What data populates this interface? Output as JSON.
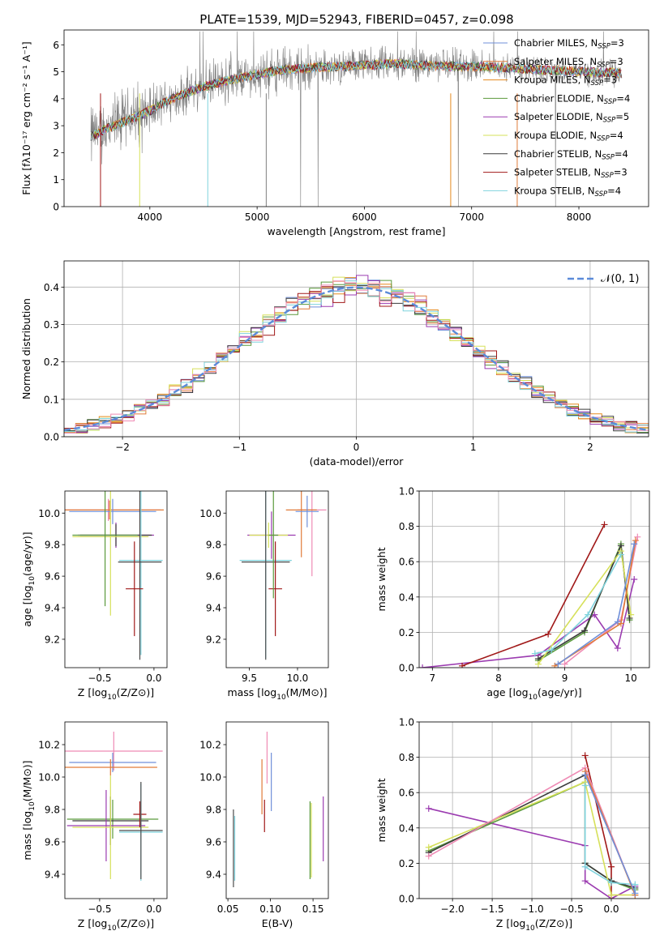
{
  "title": "PLATE=1539, MJD=52943, FIBERID=0457, z=0.098",
  "colors": [
    "#6f8fd9",
    "#e07b39",
    "#e58a1f",
    "#5b9a3c",
    "#9b3bb0",
    "#d6e05a",
    "#3a3a3a",
    "#a01818",
    "#7fd3dd",
    "#ef8bb5",
    "#4b4b4b",
    "#c83cbd"
  ],
  "chart_data": [
    {
      "id": "spectrum",
      "type": "line",
      "title": "PLATE=1539, MJD=52943, FIBERID=0457, z=0.098",
      "xlabel": "wavelength [Angstrom, rest frame]",
      "ylabel": "Flux [fλ10⁻¹⁷ erg cm⁻² s⁻¹ A⁻¹]",
      "xlim": [
        3200,
        8650
      ],
      "ylim": [
        0,
        6.55
      ],
      "xticks": [
        4000,
        5000,
        6000,
        7000,
        8000
      ],
      "yticks": [
        0,
        1,
        2,
        3,
        4,
        5,
        6
      ],
      "grid": false,
      "legend_position": "top-right",
      "data_color": "#808080",
      "continuum": {
        "x": [
          3450,
          3600,
          3800,
          4000,
          4200,
          4500,
          4800,
          5000,
          5200,
          5500,
          5800,
          6000,
          6300,
          6500,
          6800,
          7000,
          7300,
          7500,
          7800,
          8000,
          8400
        ],
        "y": [
          2.6,
          2.9,
          3.2,
          3.55,
          4.0,
          4.45,
          4.75,
          4.9,
          5.05,
          5.15,
          5.2,
          5.25,
          5.3,
          5.25,
          5.2,
          5.2,
          5.15,
          5.1,
          5.05,
          5.0,
          4.95
        ]
      },
      "legend": [
        {
          "label": "Chabrier MILES, N",
          "sub": "SSP",
          "rest": "=3",
          "color": "#6f8fd9"
        },
        {
          "label": "Salpeter MILES, N",
          "sub": "SSP",
          "rest": "=3",
          "color": "#e07b39"
        },
        {
          "label": "Kroupa MILES, N",
          "sub": "SSP",
          "rest": "=3",
          "color": "#e58a1f"
        },
        {
          "label": "Chabrier ELODIE, N",
          "sub": "SSP",
          "rest": "=4",
          "color": "#5b9a3c"
        },
        {
          "label": "Salpeter ELODIE, N",
          "sub": "SSP",
          "rest": "=5",
          "color": "#9b3bb0"
        },
        {
          "label": "Kroupa ELODIE, N",
          "sub": "SSP",
          "rest": "=4",
          "color": "#d6e05a"
        },
        {
          "label": "Chabrier STELIB, N",
          "sub": "SSP",
          "rest": "=4",
          "color": "#3a3a3a"
        },
        {
          "label": "Salpeter STELIB, N",
          "sub": "SSP",
          "rest": "=3",
          "color": "#a01818"
        },
        {
          "label": "Kroupa STELIB, N",
          "sub": "SSP",
          "rest": "=4",
          "color": "#7fd3dd"
        }
      ]
    },
    {
      "id": "residuals",
      "type": "line",
      "xlabel": "(data-model)/error",
      "ylabel": "Normed distribution",
      "xlim": [
        -2.5,
        2.5
      ],
      "ylim": [
        0,
        0.47
      ],
      "xticks": [
        -2,
        -1,
        0,
        1,
        2
      ],
      "xticklabels": [
        "−2",
        "−1",
        "0",
        "1",
        "2"
      ],
      "yticks": [
        0.0,
        0.1,
        0.2,
        0.3,
        0.4
      ],
      "yticklabels": [
        "0.0",
        "0.1",
        "0.2",
        "0.3",
        "0.4"
      ],
      "grid": true,
      "legend_position": "top-right",
      "gauss_label": "𝒩(0, 1)",
      "gauss_color": "#5b8bd9",
      "bin_width": 0.1
    },
    {
      "id": "age-vs-Z",
      "type": "scatter",
      "xlabel": "Z [log10(Z/Z⊙)]",
      "ylabel": "age  [log10(age/yr)]",
      "xlim": [
        -0.82,
        0.12
      ],
      "ylim": [
        9.02,
        10.14
      ],
      "xticks": [
        -0.5,
        0.0
      ],
      "xticklabels": [
        "−0.5",
        "0.0"
      ],
      "yticks": [
        9.2,
        9.4,
        9.6,
        9.8,
        10.0
      ],
      "yticklabels": [
        "9.2",
        "9.4",
        "9.6",
        "9.8",
        "10.0"
      ],
      "grid": false,
      "points": [
        {
          "x": -0.42,
          "y": 10.02,
          "xerr": 0.48,
          "yerr": 0.07,
          "color": "#ef8bb5"
        },
        {
          "x": -0.41,
          "y": 10.02,
          "xerr": 0.5,
          "yerr": 0.06,
          "color": "#e07b39"
        },
        {
          "x": -0.38,
          "y": 10.01,
          "xerr": 0.4,
          "yerr": 0.08,
          "color": "#6f8fd9"
        },
        {
          "x": -0.35,
          "y": 9.86,
          "xerr": 0.35,
          "yerr": 0.08,
          "color": "#9b3bb0"
        },
        {
          "x": -0.35,
          "y": 9.86,
          "xerr": 0.33,
          "yerr": 0.07,
          "color": "#3a3a3a"
        },
        {
          "x": -0.4,
          "y": 9.85,
          "xerr": 0.35,
          "yerr": 0.5,
          "color": "#d6e05a"
        },
        {
          "x": -0.45,
          "y": 9.86,
          "xerr": 0.3,
          "yerr": 0.45,
          "color": "#5b9a3c"
        },
        {
          "x": -0.12,
          "y": 9.7,
          "xerr": 0.2,
          "yerr": 0.6,
          "color": "#7fd3dd"
        },
        {
          "x": -0.13,
          "y": 9.69,
          "xerr": 0.2,
          "yerr": 0.62,
          "color": "#4b4b4b"
        },
        {
          "x": -0.18,
          "y": 9.52,
          "xerr": 0.08,
          "yerr": 0.3,
          "color": "#a01818"
        }
      ]
    },
    {
      "id": "age-vs-mass",
      "type": "scatter",
      "xlabel": "mass [log10(M/M⊙)]",
      "ylabel": "",
      "xlim": [
        9.26,
        10.32
      ],
      "ylim": [
        9.02,
        10.14
      ],
      "xticks": [
        9.5,
        10.0
      ],
      "xticklabels": [
        "9.5",
        "10.0"
      ],
      "yticks": [
        9.2,
        9.4,
        9.6,
        9.8,
        10.0
      ],
      "yticklabels": [
        "9.2",
        "9.4",
        "9.6",
        "9.8",
        "10.0"
      ],
      "grid": false,
      "points": [
        {
          "x": 10.15,
          "y": 10.02,
          "xerr": 0.15,
          "yerr": 0.42,
          "color": "#ef8bb5"
        },
        {
          "x": 10.04,
          "y": 10.02,
          "xerr": 0.16,
          "yerr": 0.3,
          "color": "#e07b39"
        },
        {
          "x": 10.1,
          "y": 10.01,
          "xerr": 0.12,
          "yerr": 0.1,
          "color": "#6f8fd9"
        },
        {
          "x": 9.73,
          "y": 9.86,
          "xerr": 0.25,
          "yerr": 0.15,
          "color": "#9b3bb0"
        },
        {
          "x": 9.7,
          "y": 9.86,
          "xerr": 0.2,
          "yerr": 0.08,
          "color": "#d6e05a"
        },
        {
          "x": 9.67,
          "y": 9.7,
          "xerr": 0.27,
          "yerr": 0.62,
          "color": "#7fd3dd"
        },
        {
          "x": 9.67,
          "y": 9.69,
          "xerr": 0.25,
          "yerr": 0.62,
          "color": "#4b4b4b"
        },
        {
          "x": 9.77,
          "y": 9.52,
          "xerr": 0.07,
          "yerr": 0.3,
          "color": "#a01818"
        },
        {
          "x": 9.75,
          "y": 9.86,
          "xerr": 0.05,
          "yerr": 0.4,
          "color": "#5b9a3c"
        }
      ]
    },
    {
      "id": "weight-vs-age",
      "type": "line",
      "xlabel": "age  [log10(age/yr)]",
      "ylabel": "mass weight",
      "xlim": [
        6.8,
        10.28
      ],
      "ylim": [
        0,
        1.0
      ],
      "xticks": [
        7,
        8,
        9,
        10
      ],
      "xticklabels": [
        "7",
        "8",
        "9",
        "10"
      ],
      "yticks": [
        0.0,
        0.2,
        0.4,
        0.6,
        0.8,
        1.0
      ],
      "yticklabels": [
        "0.0",
        "0.2",
        "0.4",
        "0.6",
        "0.8",
        "1.0"
      ],
      "grid": true,
      "series": [
        {
          "color": "#9b3bb0",
          "x": [
            6.85,
            8.6,
            9.45,
            9.8,
            10.05
          ],
          "y": [
            0.0,
            0.07,
            0.3,
            0.11,
            0.5
          ]
        },
        {
          "color": "#a01818",
          "x": [
            7.45,
            8.75,
            9.6
          ],
          "y": [
            0.01,
            0.19,
            0.81
          ]
        },
        {
          "color": "#5b9a3c",
          "x": [
            8.6,
            9.3,
            9.85,
            9.98
          ],
          "y": [
            0.04,
            0.2,
            0.7,
            0.27
          ]
        },
        {
          "color": "#3a3a3a",
          "x": [
            8.6,
            9.3,
            9.85,
            9.98
          ],
          "y": [
            0.05,
            0.21,
            0.69,
            0.28
          ]
        },
        {
          "color": "#d6e05a",
          "x": [
            8.6,
            9.85,
            10.0
          ],
          "y": [
            0.02,
            0.66,
            0.3
          ]
        },
        {
          "color": "#7fd3dd",
          "x": [
            8.55,
            8.8,
            9.35,
            9.85
          ],
          "y": [
            0.08,
            0.1,
            0.3,
            0.64
          ]
        },
        {
          "color": "#ef8bb5",
          "x": [
            9.0,
            9.85,
            10.1
          ],
          "y": [
            0.02,
            0.27,
            0.74
          ]
        },
        {
          "color": "#e07b39",
          "x": [
            8.85,
            9.85,
            10.07
          ],
          "y": [
            0.01,
            0.25,
            0.72
          ]
        },
        {
          "color": "#6f8fd9",
          "x": [
            8.9,
            9.8,
            10.05
          ],
          "y": [
            0.02,
            0.26,
            0.7
          ]
        }
      ]
    },
    {
      "id": "mass-vs-Z",
      "type": "scatter",
      "xlabel": "Z [log10(Z/Z⊙)]",
      "ylabel": "mass [log10(M/M⊙)]",
      "xlim": [
        -0.82,
        0.12
      ],
      "ylim": [
        9.25,
        10.34
      ],
      "xticks": [
        -0.5,
        0.0
      ],
      "xticklabels": [
        "−0.5",
        "0.0"
      ],
      "yticks": [
        9.4,
        9.6,
        9.8,
        10.0,
        10.2
      ],
      "yticklabels": [
        "9.4",
        "9.6",
        "9.8",
        "10.0",
        "10.2"
      ],
      "grid": false,
      "points": [
        {
          "x": -0.37,
          "y": 10.16,
          "xerr": 0.45,
          "yerr": 0.12,
          "color": "#ef8bb5"
        },
        {
          "x": -0.38,
          "y": 10.09,
          "xerr": 0.4,
          "yerr": 0.06,
          "color": "#6f8fd9"
        },
        {
          "x": -0.4,
          "y": 10.06,
          "xerr": 0.43,
          "yerr": 0.05,
          "color": "#e07b39"
        },
        {
          "x": -0.38,
          "y": 9.74,
          "xerr": 0.42,
          "yerr": 0.12,
          "color": "#5b9a3c"
        },
        {
          "x": -0.4,
          "y": 9.73,
          "xerr": 0.35,
          "yerr": 0.15,
          "color": "#3a3a3a"
        },
        {
          "x": -0.44,
          "y": 9.7,
          "xerr": 0.36,
          "yerr": 0.22,
          "color": "#9b3bb0"
        },
        {
          "x": -0.4,
          "y": 9.69,
          "xerr": 0.35,
          "yerr": 0.32,
          "color": "#d6e05a"
        },
        {
          "x": -0.13,
          "y": 9.77,
          "xerr": 0.06,
          "yerr": 0.08,
          "color": "#a01818"
        },
        {
          "x": -0.12,
          "y": 9.66,
          "xerr": 0.2,
          "yerr": 0.3,
          "color": "#7fd3dd"
        },
        {
          "x": -0.12,
          "y": 9.67,
          "xerr": 0.2,
          "yerr": 0.3,
          "color": "#4b4b4b"
        }
      ]
    },
    {
      "id": "mass-vs-EBV",
      "type": "scatter",
      "xlabel": "E(B-V)",
      "ylabel": "",
      "xlim": [
        0.048,
        0.168
      ],
      "ylim": [
        9.25,
        10.34
      ],
      "xticks": [
        0.05,
        0.1,
        0.15
      ],
      "xticklabels": [
        "0.05",
        "0.10",
        "0.15"
      ],
      "yticks": [
        9.4,
        9.6,
        9.8,
        10.0,
        10.2
      ],
      "yticklabels": [
        "9.4",
        "9.6",
        "9.8",
        "10.0",
        "10.2"
      ],
      "grid": false,
      "points": [
        {
          "x": 0.0565,
          "y": 9.56,
          "xerr": 0,
          "yerr": 0.24,
          "color": "#4b4b4b"
        },
        {
          "x": 0.058,
          "y": 9.56,
          "xerr": 0,
          "yerr": 0.2,
          "color": "#7fd3dd"
        },
        {
          "x": 0.09,
          "y": 9.94,
          "xerr": 0,
          "yerr": 0.17,
          "color": "#e07b39"
        },
        {
          "x": 0.093,
          "y": 9.76,
          "xerr": 0,
          "yerr": 0.1,
          "color": "#a01818"
        },
        {
          "x": 0.096,
          "y": 10.12,
          "xerr": 0,
          "yerr": 0.16,
          "color": "#ef8bb5"
        },
        {
          "x": 0.101,
          "y": 9.97,
          "xerr": 0,
          "yerr": 0.18,
          "color": "#6f8fd9"
        },
        {
          "x": 0.1465,
          "y": 9.61,
          "xerr": 0,
          "yerr": 0.24,
          "color": "#5b9a3c"
        },
        {
          "x": 0.148,
          "y": 9.61,
          "xerr": 0,
          "yerr": 0.23,
          "color": "#d6e05a"
        },
        {
          "x": 0.162,
          "y": 9.68,
          "xerr": 0,
          "yerr": 0.2,
          "color": "#9b3bb0"
        }
      ]
    },
    {
      "id": "weight-vs-Z",
      "type": "line",
      "xlabel": "Z [log10(Z/Z⊙)]",
      "ylabel": "mass weight",
      "xlim": [
        -2.42,
        0.48
      ],
      "ylim": [
        0,
        1.0
      ],
      "xticks": [
        -2.0,
        -1.5,
        -1.0,
        -0.5,
        0.0
      ],
      "xticklabels": [
        "−2.0",
        "−1.5",
        "−1.0",
        "−0.5",
        "0.0"
      ],
      "yticks": [
        0.0,
        0.2,
        0.4,
        0.6,
        0.8,
        1.0
      ],
      "yticklabels": [
        "0.0",
        "0.2",
        "0.4",
        "0.6",
        "0.8",
        "1.0"
      ],
      "grid": true,
      "series": [
        {
          "color": "#9b3bb0",
          "x": [
            -2.3,
            -0.33,
            -0.33,
            0.0,
            0.3
          ],
          "y": [
            0.51,
            0.3,
            0.1,
            0.0,
            0.07
          ]
        },
        {
          "color": "#a01818",
          "x": [
            -0.33,
            0.0,
            0.0
          ],
          "y": [
            0.81,
            0.18,
            0.02
          ]
        },
        {
          "color": "#5b9a3c",
          "x": [
            -2.3,
            -0.33,
            -0.33,
            0.0,
            0.3
          ],
          "y": [
            0.27,
            0.66,
            0.2,
            0.1,
            0.05
          ]
        },
        {
          "color": "#3a3a3a",
          "x": [
            -2.3,
            -0.33,
            -0.33,
            0.0,
            0.3
          ],
          "y": [
            0.26,
            0.7,
            0.2,
            0.1,
            0.06
          ]
        },
        {
          "color": "#d6e05a",
          "x": [
            -2.3,
            -0.33,
            0.0,
            0.3
          ],
          "y": [
            0.29,
            0.66,
            0.02,
            0.02
          ]
        },
        {
          "color": "#7fd3dd",
          "x": [
            -0.33,
            -0.33,
            0.0,
            0.3,
            0.3
          ],
          "y": [
            0.64,
            0.18,
            0.09,
            0.08,
            0.02
          ]
        },
        {
          "color": "#ef8bb5",
          "x": [
            -2.3,
            -0.33,
            0.3
          ],
          "y": [
            0.24,
            0.74,
            0.02
          ]
        },
        {
          "color": "#e07b39",
          "x": [
            -0.33,
            0.3
          ],
          "y": [
            0.72,
            0.02
          ]
        },
        {
          "color": "#6f8fd9",
          "x": [
            -0.33,
            0.3
          ],
          "y": [
            0.7,
            0.03
          ]
        }
      ]
    }
  ]
}
